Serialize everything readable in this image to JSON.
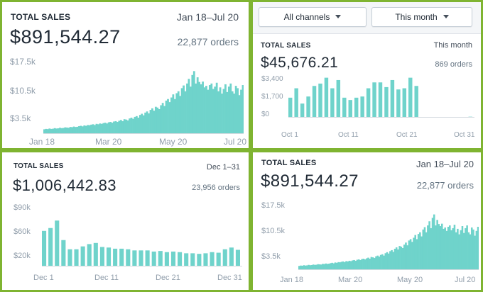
{
  "colors": {
    "bar": "#6fd3cb",
    "axis": "#d5dbe0",
    "tick_text": "#919eab",
    "background_frame": "#7fb431"
  },
  "panel1": {
    "title": "TOTAL SALES",
    "date_range": "Jan 18–Jul 20",
    "total": "$891,544.27",
    "orders": "22,877 orders",
    "y_ticks": [
      "$17.5k",
      "$10.5k",
      "$3.5k"
    ],
    "x_ticks": [
      "Jan 18",
      "Mar 20",
      "May 20",
      "Jul 20"
    ]
  },
  "panel2": {
    "toolbar": {
      "channel_label": "All channels",
      "period_label": "This month"
    },
    "title": "TOTAL SALES",
    "period": "This month",
    "total": "$45,676.21",
    "orders": "869 orders",
    "y_ticks": [
      "$3,400",
      "$1,700",
      "$0"
    ],
    "x_ticks": [
      "Oct 1",
      "Oct 11",
      "Oct 21",
      "Oct 31"
    ]
  },
  "panel3": {
    "title": "TOTAL SALES",
    "date_range": "Dec 1–31",
    "total": "$1,006,442.83",
    "orders": "23,956 orders",
    "y_ticks": [
      "$90k",
      "$60k",
      "$20k"
    ],
    "x_ticks": [
      "Dec 1",
      "Dec 11",
      "Dec 21",
      "Dec 31"
    ]
  },
  "panel4": {
    "title": "TOTAL SALES",
    "date_range": "Jan 18–Jul 20",
    "total": "$891,544.27",
    "orders": "22,877 orders",
    "y_ticks": [
      "$17.5k",
      "$10.5k",
      "$3.5k"
    ],
    "x_ticks": [
      "Jan 18",
      "Mar 20",
      "May 20",
      "Jul 20"
    ]
  },
  "chart_data": [
    {
      "type": "bar",
      "title": "TOTAL SALES",
      "subtitle": "Jan 18–Jul 20",
      "x_range": [
        "Jan 18",
        "Jul 20"
      ],
      "ylim": [
        0,
        19000
      ],
      "y_ticks": [
        3500,
        10500,
        17500
      ],
      "series": [
        {
          "values": [
            1200,
            1300,
            1250,
            1400,
            1300,
            1350,
            1500,
            1400,
            1450,
            1600,
            1500,
            1550,
            1700,
            1650,
            1600,
            1800,
            1750,
            1900,
            1800,
            1850,
            2000,
            2100,
            1950,
            2200,
            2100,
            2300,
            2250,
            2400,
            2500,
            2300,
            2600,
            2500,
            2700,
            2600,
            2800,
            2900,
            2700,
            3000,
            3100,
            2900,
            3200,
            3300,
            3100,
            3400,
            3600,
            3300,
            3800,
            3700,
            3500,
            4000,
            4200,
            3900,
            4400,
            4600,
            4200,
            4900,
            5200,
            4800,
            5500,
            5800,
            5300,
            6200,
            6600,
            6000,
            7000,
            6800,
            6400,
            7400,
            8000,
            7200,
            8600,
            9000,
            8200,
            9400,
            10200,
            9000,
            10500,
            11000,
            9800,
            11800,
            12500,
            11000,
            13000,
            14200,
            12200,
            15200,
            16200,
            13000,
            14600,
            13400,
            12800,
            13500,
            12000,
            12400,
            11400,
            12600,
            13000,
            11600,
            12200,
            13200,
            11000,
            12000,
            10400,
            11600,
            12800,
            10800,
            12200,
            13000,
            11000,
            10400,
            12400,
            11800,
            10000,
            11400,
            12600
          ]
        }
      ]
    },
    {
      "type": "bar",
      "title": "TOTAL SALES",
      "subtitle": "This month",
      "categories": [
        "Oct 1",
        "Oct 2",
        "Oct 3",
        "Oct 4",
        "Oct 5",
        "Oct 6",
        "Oct 7",
        "Oct 8",
        "Oct 9",
        "Oct 10",
        "Oct 11",
        "Oct 12",
        "Oct 13",
        "Oct 14",
        "Oct 15",
        "Oct 16",
        "Oct 17",
        "Oct 18",
        "Oct 19",
        "Oct 20",
        "Oct 21",
        "Oct 22",
        "Oct 23",
        "Oct 24",
        "Oct 25",
        "Oct 26",
        "Oct 27",
        "Oct 28",
        "Oct 29",
        "Oct 30",
        "Oct 31"
      ],
      "ylim": [
        0,
        3800
      ],
      "y_ticks": [
        0,
        1700,
        3400
      ],
      "series": [
        {
          "values": [
            1700,
            2500,
            1200,
            1800,
            2700,
            2900,
            3400,
            2500,
            3200,
            1700,
            1500,
            1700,
            1800,
            2500,
            3000,
            3000,
            2600,
            3200,
            2400,
            2500,
            3400,
            2700,
            60,
            60,
            60,
            40,
            20,
            60,
            60,
            40,
            80
          ]
        }
      ]
    },
    {
      "type": "bar",
      "title": "TOTAL SALES",
      "subtitle": "Dec 1–31",
      "categories": [
        "Dec 1",
        "Dec 2",
        "Dec 3",
        "Dec 4",
        "Dec 5",
        "Dec 6",
        "Dec 7",
        "Dec 8",
        "Dec 9",
        "Dec 10",
        "Dec 11",
        "Dec 12",
        "Dec 13",
        "Dec 14",
        "Dec 15",
        "Dec 16",
        "Dec 17",
        "Dec 18",
        "Dec 19",
        "Dec 20",
        "Dec 21",
        "Dec 22",
        "Dec 23",
        "Dec 24",
        "Dec 25",
        "Dec 26",
        "Dec 27",
        "Dec 28",
        "Dec 29",
        "Dec 30",
        "Dec 31"
      ],
      "ylim": [
        0,
        100000
      ],
      "y_ticks": [
        20000,
        60000,
        90000
      ],
      "series": [
        {
          "values": [
            62000,
            67000,
            80000,
            46000,
            30000,
            30000,
            35000,
            39000,
            41000,
            34000,
            33000,
            31000,
            31000,
            30000,
            28000,
            28000,
            28000,
            26000,
            27000,
            25000,
            26000,
            25000,
            23000,
            23000,
            22000,
            23000,
            25000,
            24000,
            30000,
            33000,
            29000
          ]
        }
      ]
    },
    {
      "type": "bar",
      "title": "TOTAL SALES",
      "subtitle": "Jan 18–Jul 20",
      "x_range": [
        "Jan 18",
        "Jul 20"
      ],
      "ylim": [
        0,
        19000
      ],
      "y_ticks": [
        3500,
        10500,
        17500
      ],
      "series": [
        {
          "values": [
            1200,
            1300,
            1250,
            1400,
            1300,
            1350,
            1500,
            1400,
            1450,
            1600,
            1500,
            1550,
            1700,
            1650,
            1600,
            1800,
            1750,
            1900,
            1800,
            1850,
            2000,
            2100,
            1950,
            2200,
            2100,
            2300,
            2250,
            2400,
            2500,
            2300,
            2600,
            2500,
            2700,
            2600,
            2800,
            2900,
            2700,
            3000,
            3100,
            2900,
            3200,
            3300,
            3100,
            3400,
            3600,
            3300,
            3800,
            3700,
            3500,
            4000,
            4200,
            3900,
            4400,
            4600,
            4200,
            4900,
            5200,
            4800,
            5500,
            5800,
            5300,
            6200,
            6600,
            6000,
            7000,
            6800,
            6400,
            7400,
            8000,
            7200,
            8600,
            9000,
            8200,
            9400,
            10200,
            9000,
            10500,
            11000,
            9800,
            11800,
            12500,
            11000,
            13000,
            14200,
            12200,
            15200,
            16200,
            13000,
            14600,
            13400,
            12800,
            13500,
            12000,
            12400,
            11400,
            12600,
            13000,
            11600,
            12200,
            13200,
            11000,
            12000,
            10400,
            11600,
            12800,
            10800,
            12200,
            13000,
            11000,
            10400,
            12400,
            11800,
            10000,
            11400,
            12600
          ]
        }
      ]
    }
  ]
}
